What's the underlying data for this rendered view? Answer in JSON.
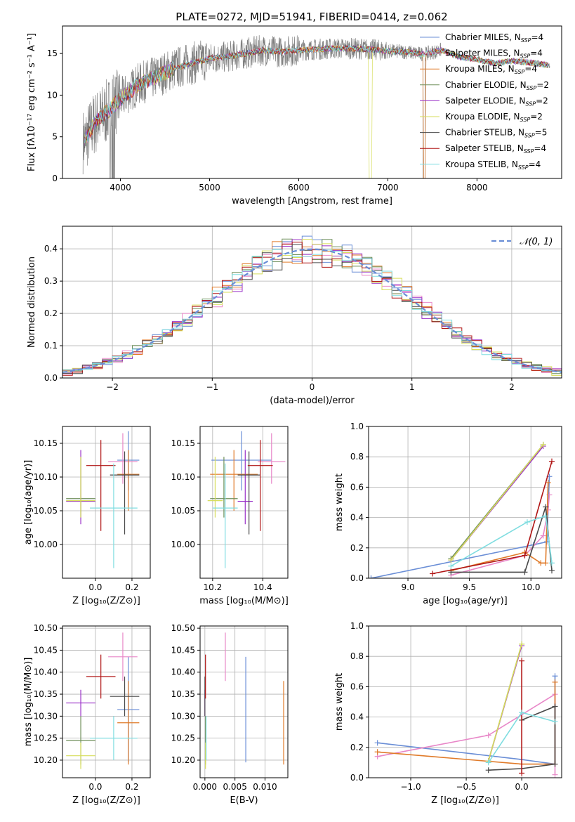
{
  "page_title": "PLATE=0272, MJD=51941, FIBERID=0414, z=0.062",
  "colors": {
    "chabrier_miles": "#6a8ed6",
    "salpeter_miles": "#e887c8",
    "kroupa_miles": "#e07b2a",
    "chabrier_elodie": "#6f8f5a",
    "salpeter_elodie": "#9a30c8",
    "kroupa_elodie": "#d6dd5a",
    "chabrier_stelib": "#4a4a4a",
    "salpeter_stelib": "#b01515",
    "kroupa_stelib": "#7fdde0",
    "data": "#808080"
  },
  "legend_models": [
    {
      "key": "chabrier_miles",
      "label": "Chabrier MILES, N",
      "sub": "SSP",
      "suffix": "=4"
    },
    {
      "key": "salpeter_miles",
      "label": "Salpeter MILES, N",
      "sub": "SSP",
      "suffix": "=4"
    },
    {
      "key": "kroupa_miles",
      "label": "Kroupa MILES, N",
      "sub": "SSP",
      "suffix": "=4"
    },
    {
      "key": "chabrier_elodie",
      "label": "Chabrier ELODIE, N",
      "sub": "SSP",
      "suffix": "=2"
    },
    {
      "key": "salpeter_elodie",
      "label": "Salpeter ELODIE, N",
      "sub": "SSP",
      "suffix": "=2"
    },
    {
      "key": "kroupa_elodie",
      "label": "Kroupa ELODIE, N",
      "sub": "SSP",
      "suffix": "=2"
    },
    {
      "key": "chabrier_stelib",
      "label": "Chabrier STELIB, N",
      "sub": "SSP",
      "suffix": "=5"
    },
    {
      "key": "salpeter_stelib",
      "label": "Salpeter STELIB, N",
      "sub": "SSP",
      "suffix": "=4"
    },
    {
      "key": "kroupa_stelib",
      "label": "Kroupa STELIB, N",
      "sub": "SSP",
      "suffix": "=4"
    }
  ],
  "chart_data": [
    {
      "id": "spectrum",
      "type": "line",
      "xlabel": "wavelength [Angstrom, rest frame]",
      "ylabel": "Flux [fλ10⁻¹⁷ erg cm⁻² s⁻¹ A⁻¹]",
      "xlim": [
        3350,
        8950
      ],
      "ylim": [
        0,
        18.3
      ],
      "xticks": [
        4000,
        5000,
        6000,
        7000,
        8000
      ],
      "yticks": [
        0,
        5,
        10,
        15
      ],
      "grid": false,
      "legend_position": "right",
      "continuum_x": [
        3600,
        3700,
        3800,
        3900,
        4000,
        4200,
        4400,
        4600,
        4800,
        5000,
        5200,
        5400,
        5600,
        5800,
        6000,
        6200,
        6400,
        6600,
        6800,
        7000,
        7200,
        7400,
        7600,
        7800,
        8000,
        8200,
        8400,
        8600,
        8800
      ],
      "continuum_y": [
        4.5,
        6.5,
        7.5,
        8.5,
        9.5,
        11.3,
        12.2,
        13.2,
        13.8,
        14.4,
        14.6,
        15.0,
        15.4,
        15.2,
        15.4,
        15.5,
        15.6,
        15.6,
        15.5,
        15.3,
        15.2,
        14.9,
        15.4,
        14.6,
        14.3,
        13.8,
        14.1,
        13.9,
        13.6
      ]
    },
    {
      "id": "residuals",
      "type": "histogram",
      "xlabel": "(data-model)/error",
      "ylabel": "Normed distribution",
      "xlim": [
        -2.5,
        2.5
      ],
      "ylim": [
        0,
        0.47
      ],
      "xticks": [
        -2,
        -1,
        0,
        1,
        2
      ],
      "yticks": [
        0.0,
        0.1,
        0.2,
        0.3,
        0.4
      ],
      "grid": true,
      "legend_position": "top-right",
      "reference_label": "𝒩(0, 1)",
      "bin_width": 0.1
    },
    {
      "id": "age_vs_Z",
      "type": "scatter",
      "xlabel": "Z [log₁₀(Z/Z⊙)]",
      "ylabel": "age  [log₁₀(age/yr)]",
      "xlim": [
        -0.18,
        0.3
      ],
      "ylim": [
        9.95,
        10.175
      ],
      "xticks": [
        0.0,
        0.2
      ],
      "yticks": [
        10.0,
        10.05,
        10.1,
        10.15
      ],
      "grid": true
    },
    {
      "id": "age_vs_mass",
      "type": "scatter",
      "xlabel": "mass [log₁₀(M/M⊙)]",
      "xlim": [
        10.15,
        10.5
      ],
      "ylim": [
        9.95,
        10.175
      ],
      "xticks": [
        10.2,
        10.4
      ],
      "yticks": [
        10.0,
        10.05,
        10.1,
        10.15
      ],
      "grid": true
    },
    {
      "id": "weight_vs_age",
      "type": "line",
      "xlabel": "age  [log₁₀(age/yr)]",
      "ylabel": "mass weight",
      "xlim": [
        8.68,
        10.25
      ],
      "ylim": [
        0,
        1.0
      ],
      "xticks": [
        9.0,
        9.5,
        10.0
      ],
      "yticks": [
        0.0,
        0.2,
        0.4,
        0.6,
        0.8,
        1.0
      ],
      "grid": true
    },
    {
      "id": "mass_vs_Z",
      "type": "scatter",
      "xlabel": "Z [log₁₀(Z/Z⊙)]",
      "ylabel": "mass [log₁₀(M/M⊙)]",
      "xlim": [
        -0.18,
        0.3
      ],
      "ylim": [
        10.16,
        10.505
      ],
      "xticks": [
        0.0,
        0.2
      ],
      "yticks": [
        10.2,
        10.25,
        10.3,
        10.35,
        10.4,
        10.45,
        10.5
      ],
      "grid": true
    },
    {
      "id": "mass_vs_ebv",
      "type": "scatter",
      "xlabel": "E(B-V)",
      "xlim": [
        -0.0008,
        0.0138
      ],
      "ylim": [
        10.16,
        10.505
      ],
      "xticks": [
        0.0,
        0.005,
        0.01
      ],
      "yticks": [
        10.2,
        10.25,
        10.3,
        10.35,
        10.4,
        10.45,
        10.5
      ],
      "grid": true
    },
    {
      "id": "weight_vs_Z",
      "type": "line",
      "xlabel": "Z [log₁₀(Z/Z⊙)]",
      "ylabel": "mass weight",
      "xlim": [
        -1.38,
        0.36
      ],
      "ylim": [
        0,
        1.0
      ],
      "xticks": [
        -1.0,
        -0.5,
        0.0
      ],
      "yticks": [
        0.0,
        0.2,
        0.4,
        0.6,
        0.8,
        1.0
      ],
      "grid": true
    }
  ],
  "model_fits": [
    {
      "key": "chabrier_miles",
      "Z": 0.18,
      "Zerr": 0.06,
      "age": 10.125,
      "age_lo": 10.08,
      "age_hi": 10.168,
      "mass": 10.313,
      "mass_lo": 10.195,
      "mass_hi": 10.435,
      "ebv": 0.0068,
      "sfh_age": [
        8.7,
        10.02,
        10.13,
        10.15
      ],
      "sfh_w": [
        0.0,
        0.22,
        0.24,
        0.67
      ],
      "sfh_Z": [
        -1.3,
        0.0,
        0.3,
        0.3
      ],
      "sfh_Zw": [
        0.23,
        0.12,
        0.09,
        0.67
      ]
    },
    {
      "key": "salpeter_miles",
      "Z": 0.15,
      "Zerr": 0.08,
      "age": 10.123,
      "age_lo": 10.09,
      "age_hi": 10.165,
      "mass": 10.445,
      "mass_lo": 10.38,
      "mass_hi": 10.49,
      "ebv": 0.0034,
      "sfh_age": [
        9.35,
        9.95,
        10.1,
        10.14,
        10.15
      ],
      "sfh_w": [
        0.02,
        0.15,
        0.28,
        0.45,
        0.55
      ],
      "sfh_Z": [
        -1.3,
        -0.3,
        0.3,
        0.3
      ],
      "sfh_Zw": [
        0.14,
        0.28,
        0.55,
        0.02
      ]
    },
    {
      "key": "kroupa_miles",
      "Z": 0.18,
      "Zerr": 0.06,
      "age": 10.104,
      "age_lo": 10.05,
      "age_hi": 10.14,
      "mass": 10.275,
      "mass_lo": 10.19,
      "mass_hi": 10.38,
      "ebv": 0.0131,
      "sfh_age": [
        9.35,
        9.95,
        10.08,
        10.12,
        10.14
      ],
      "sfh_w": [
        0.05,
        0.17,
        0.1,
        0.1,
        0.63
      ],
      "sfh_Z": [
        -1.3,
        0.0,
        0.3,
        0.3
      ],
      "sfh_Zw": [
        0.17,
        0.09,
        0.09,
        0.63
      ]
    },
    {
      "key": "chabrier_elodie",
      "Z": -0.08,
      "Zerr": 0.08,
      "age": 10.068,
      "age_lo": 10.04,
      "age_hi": 10.13,
      "mass": 10.228,
      "mass_lo": 10.19,
      "mass_hi": 10.3,
      "ebv": 0.0001,
      "sfh_age": [
        9.35,
        10.1
      ],
      "sfh_w": [
        0.13,
        0.88
      ],
      "sfh_Z": [
        -0.3,
        0.0
      ],
      "sfh_Zw": [
        0.11,
        0.88
      ]
    },
    {
      "key": "salpeter_elodie",
      "Z": -0.08,
      "Zerr": 0.08,
      "age": 10.064,
      "age_lo": 10.03,
      "age_hi": 10.14,
      "mass": 10.325,
      "mass_lo": 10.3,
      "mass_hi": 10.36,
      "ebv": 0.0,
      "sfh_age": [
        9.35,
        10.1
      ],
      "sfh_w": [
        0.12,
        0.87
      ],
      "sfh_Z": [
        -0.3,
        0.0
      ],
      "sfh_Zw": [
        0.11,
        0.87
      ]
    },
    {
      "key": "kroupa_elodie",
      "Z": -0.08,
      "Zerr": 0.08,
      "age": 10.065,
      "age_lo": 10.04,
      "age_hi": 10.13,
      "mass": 10.214,
      "mass_lo": 10.18,
      "mass_hi": 10.24,
      "ebv": 0.0001,
      "sfh_age": [
        9.35,
        10.1
      ],
      "sfh_w": [
        0.12,
        0.88
      ],
      "sfh_Z": [
        -0.3,
        0.0
      ],
      "sfh_Zw": [
        0.11,
        0.88
      ]
    },
    {
      "key": "chabrier_stelib",
      "Z": 0.16,
      "Zerr": 0.08,
      "age": 10.103,
      "age_lo": 10.015,
      "age_hi": 10.138,
      "mass": 10.355,
      "mass_lo": 10.3,
      "mass_hi": 10.39,
      "ebv": 0.0,
      "sfh_age": [
        9.35,
        9.95,
        10.12,
        10.17
      ],
      "sfh_w": [
        0.04,
        0.04,
        0.47,
        0.05
      ],
      "sfh_Z": [
        -0.3,
        0.0,
        0.3,
        0.3,
        0.0
      ],
      "sfh_Zw": [
        0.05,
        0.06,
        0.09,
        0.47,
        0.38
      ]
    },
    {
      "key": "salpeter_stelib",
      "Z": 0.03,
      "Zerr": 0.08,
      "age": 10.117,
      "age_lo": 10.02,
      "age_hi": 10.155,
      "mass": 10.388,
      "mass_lo": 10.34,
      "mass_hi": 10.44,
      "ebv": 0.0001,
      "sfh_age": [
        9.2,
        9.95,
        10.17
      ],
      "sfh_w": [
        0.03,
        0.15,
        0.77
      ],
      "sfh_Z": [
        0.0,
        0.0
      ],
      "sfh_Zw": [
        0.03,
        0.77
      ]
    },
    {
      "key": "kroupa_stelib",
      "Z": 0.1,
      "Zerr": 0.13,
      "age": 10.054,
      "age_lo": 9.965,
      "age_hi": 10.12,
      "mass": 10.27,
      "mass_lo": 10.2,
      "mass_hi": 10.3,
      "ebv": 0.0002,
      "sfh_age": [
        9.35,
        9.97,
        10.12,
        10.17
      ],
      "sfh_w": [
        0.08,
        0.37,
        0.41,
        0.1
      ],
      "sfh_Z": [
        -0.3,
        0.0,
        0.3
      ],
      "sfh_Zw": [
        0.1,
        0.43,
        0.37
      ]
    }
  ]
}
